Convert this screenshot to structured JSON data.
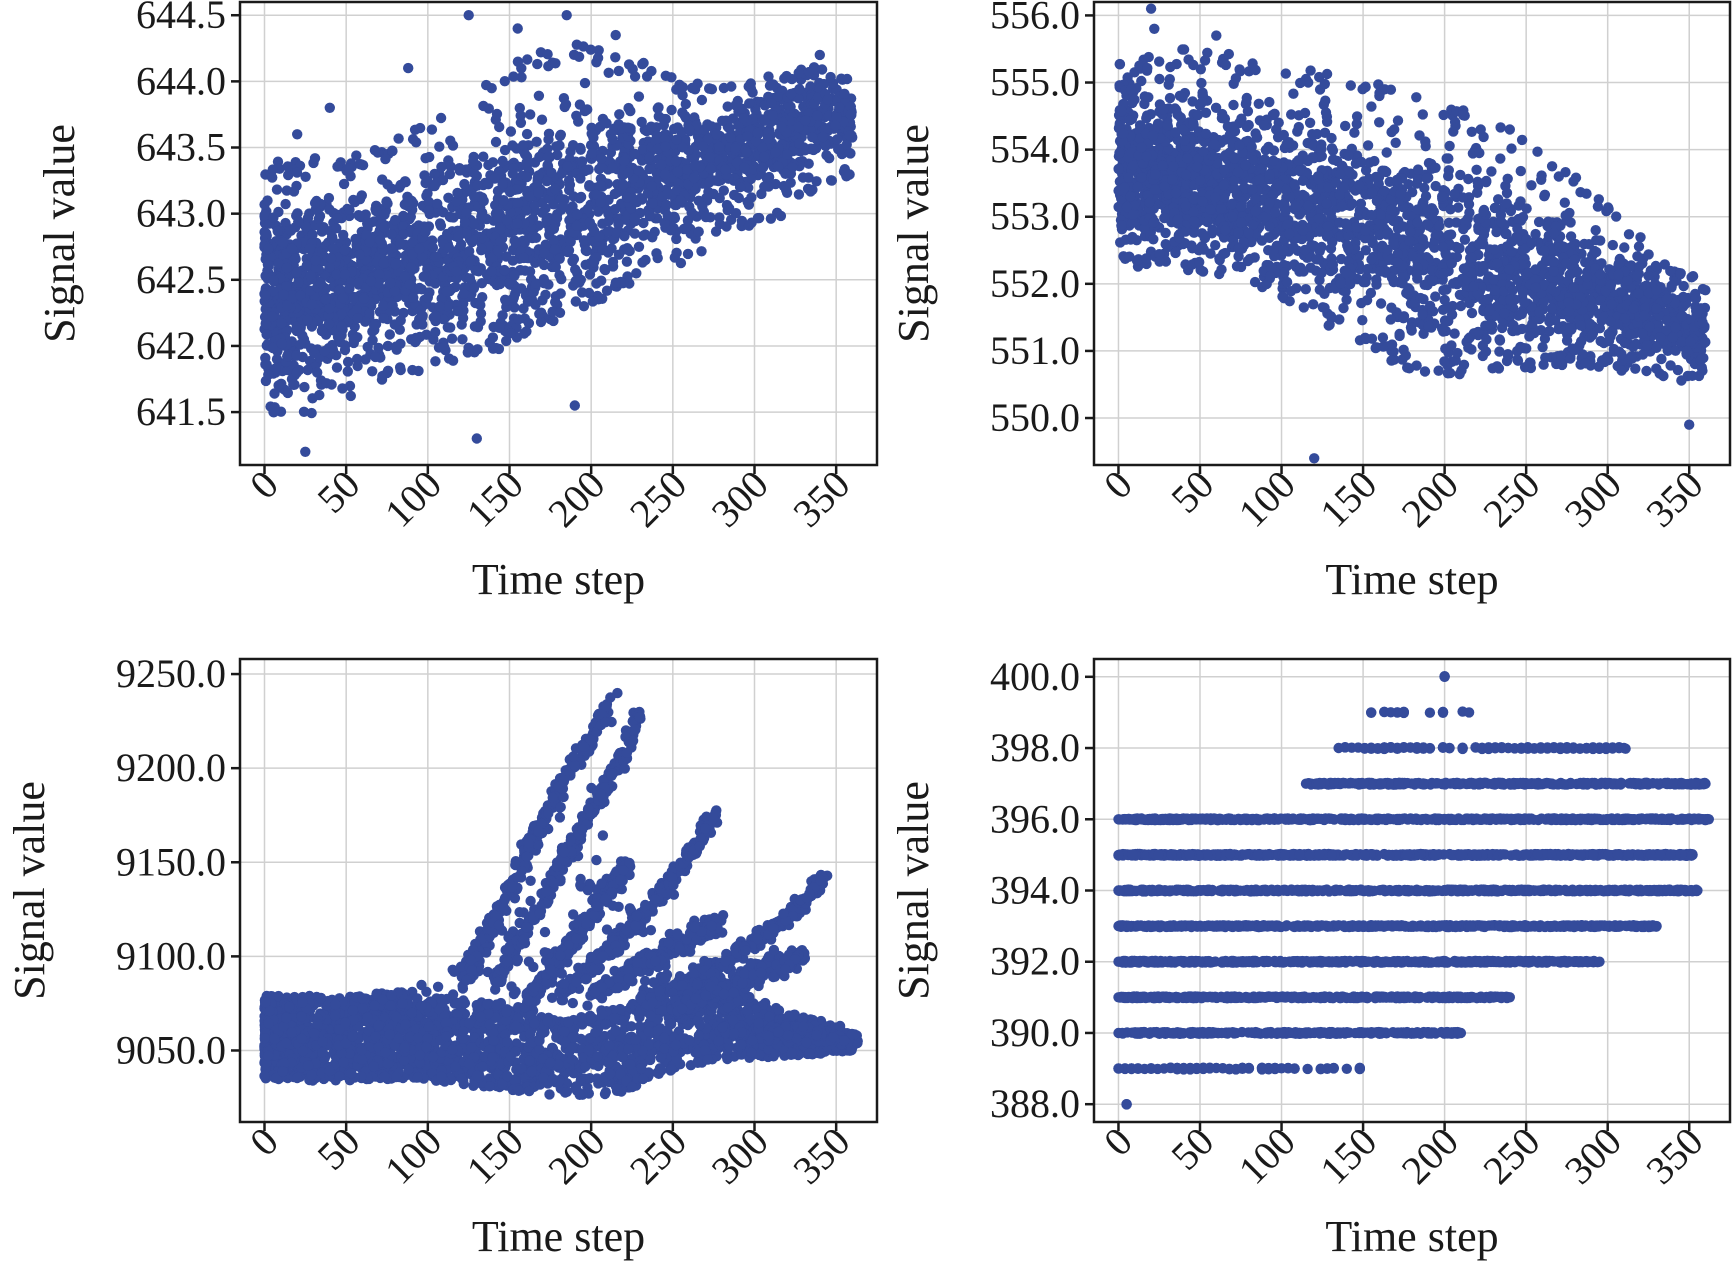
{
  "chart_data": [
    {
      "type": "scatter",
      "title": "",
      "xlabel": "Time step",
      "ylabel": "Signal value",
      "xlim": [
        -15,
        375
      ],
      "ylim": [
        641.1,
        644.6
      ],
      "xticks": [
        0,
        50,
        100,
        150,
        200,
        250,
        300,
        350
      ],
      "xtick_labels": [
        "0",
        "50",
        "100",
        "150",
        "200",
        "250",
        "300",
        "350"
      ],
      "yticks": [
        641.5,
        642.0,
        642.5,
        643.0,
        643.5,
        644.0,
        644.5
      ],
      "ytick_labels": [
        "641.5",
        "642.0",
        "642.5",
        "643.0",
        "643.5",
        "644.0",
        "644.5"
      ],
      "grid": true,
      "color": "#344b9b",
      "x": [
        0,
        20,
        40,
        60,
        80,
        100,
        120,
        140,
        160,
        180,
        200,
        220,
        240,
        260,
        280,
        300,
        320,
        340,
        360
      ],
      "y_mean": [
        642.4,
        642.45,
        642.5,
        642.55,
        642.6,
        642.65,
        642.75,
        642.85,
        642.95,
        643.05,
        643.15,
        643.2,
        643.3,
        643.35,
        643.4,
        643.5,
        643.6,
        643.7,
        643.75
      ],
      "y_lower": [
        641.4,
        641.45,
        641.5,
        641.6,
        641.7,
        641.8,
        641.9,
        641.95,
        642.1,
        642.2,
        642.3,
        642.45,
        642.55,
        642.65,
        642.8,
        642.9,
        643.0,
        643.2,
        643.3
      ],
      "y_upper": [
        643.4,
        643.45,
        643.4,
        643.45,
        643.6,
        643.7,
        643.9,
        644.1,
        644.2,
        644.3,
        644.3,
        644.2,
        644.1,
        644.0,
        643.95,
        644.0,
        644.1,
        644.15,
        644.0
      ],
      "outliers": [
        [
          125,
          644.5
        ],
        [
          185,
          644.5
        ],
        [
          155,
          644.4
        ],
        [
          215,
          644.35
        ],
        [
          88,
          644.1
        ],
        [
          40,
          643.8
        ],
        [
          20,
          643.6
        ],
        [
          340,
          644.2
        ],
        [
          240,
          642.7
        ],
        [
          130,
          641.3
        ],
        [
          190,
          641.55
        ],
        [
          25,
          641.2
        ]
      ]
    },
    {
      "type": "scatter",
      "title": "",
      "xlabel": "Time step",
      "ylabel": "Signal value",
      "xlim": [
        -15,
        375
      ],
      "ylim": [
        549.3,
        556.2
      ],
      "xticks": [
        0,
        50,
        100,
        150,
        200,
        250,
        300,
        350
      ],
      "xtick_labels": [
        "0",
        "50",
        "100",
        "150",
        "200",
        "250",
        "300",
        "350"
      ],
      "yticks": [
        550.0,
        551.0,
        552.0,
        553.0,
        554.0,
        555.0,
        556.0
      ],
      "ytick_labels": [
        "550.0",
        "551.0",
        "552.0",
        "553.0",
        "554.0",
        "555.0",
        "556.0"
      ],
      "grid": true,
      "color": "#344b9b",
      "x": [
        0,
        20,
        40,
        60,
        80,
        100,
        120,
        140,
        160,
        180,
        200,
        220,
        240,
        260,
        280,
        300,
        320,
        340,
        360
      ],
      "y_mean": [
        553.7,
        553.65,
        553.6,
        553.5,
        553.4,
        553.25,
        553.1,
        552.95,
        552.8,
        552.6,
        552.4,
        552.3,
        552.15,
        552.0,
        551.9,
        551.7,
        551.55,
        551.4,
        551.3
      ],
      "y_lower": [
        552.3,
        552.2,
        552.2,
        552.1,
        552.0,
        551.8,
        551.5,
        551.2,
        550.9,
        550.7,
        550.6,
        550.7,
        550.7,
        550.75,
        550.8,
        550.7,
        550.6,
        550.5,
        550.6
      ],
      "y_upper": [
        555.3,
        555.4,
        555.5,
        555.5,
        555.4,
        555.3,
        555.2,
        555.1,
        555.0,
        554.9,
        554.7,
        554.5,
        554.3,
        554.0,
        553.6,
        553.2,
        552.7,
        552.3,
        552.0
      ],
      "outliers": [
        [
          20,
          556.1
        ],
        [
          22,
          555.8
        ],
        [
          60,
          555.7
        ],
        [
          160,
          554.8
        ],
        [
          120,
          549.4
        ],
        [
          240,
          554.3
        ],
        [
          350,
          549.9
        ],
        [
          330,
          551.9
        ],
        [
          270,
          553.6
        ]
      ]
    },
    {
      "type": "scatter",
      "title": "",
      "xlabel": "Time step",
      "ylabel": "Signal value",
      "xlim": [
        -15,
        375
      ],
      "ylim": [
        9012,
        9258
      ],
      "xticks": [
        0,
        50,
        100,
        150,
        200,
        250,
        300,
        350
      ],
      "xtick_labels": [
        "0",
        "50",
        "100",
        "150",
        "200",
        "250",
        "300",
        "350"
      ],
      "yticks": [
        9050.0,
        9100.0,
        9150.0,
        9200.0,
        9250.0
      ],
      "ytick_labels": [
        "9050.0",
        "9100.0",
        "9150.0",
        "9200.0",
        "9250.0"
      ],
      "grid": true,
      "color": "#344b9b",
      "band": {
        "x": [
          0,
          20,
          40,
          60,
          80,
          100,
          120,
          140,
          160,
          180,
          200,
          220,
          240,
          260,
          280,
          300,
          320,
          340,
          360
        ],
        "y_lower": [
          9035,
          9034,
          9034,
          9034,
          9035,
          9034,
          9032,
          9030,
          9028,
          9026,
          9026,
          9028,
          9036,
          9042,
          9045,
          9046,
          9047,
          9048,
          9050
        ],
        "y_upper": [
          9079,
          9079,
          9079,
          9079,
          9082,
          9086,
          9100,
          9118,
          9150,
          9180,
          9200,
          9140,
          9112,
          9098,
          9090,
          9078,
          9070,
          9066,
          9058
        ]
      },
      "branches": [
        {
          "x": [
            120,
            150,
            175,
            195,
            210,
            213
          ],
          "y": [
            9085,
            9135,
            9180,
            9210,
            9232,
            9244
          ]
        },
        {
          "x": [
            140,
            170,
            195,
            215,
            230
          ],
          "y": [
            9085,
            9128,
            9170,
            9200,
            9228
          ]
        },
        {
          "x": [
            160,
            190,
            210,
            225
          ],
          "y": [
            9075,
            9110,
            9135,
            9152
          ]
        },
        {
          "x": [
            180,
            215,
            245,
            265,
            277
          ],
          "y": [
            9080,
            9105,
            9135,
            9160,
            9176
          ]
        },
        {
          "x": [
            200,
            240,
            265,
            280
          ],
          "y": [
            9080,
            9100,
            9112,
            9118
          ]
        },
        {
          "x": [
            230,
            270,
            305,
            330,
            342
          ],
          "y": [
            9075,
            9090,
            9110,
            9128,
            9142
          ]
        },
        {
          "x": [
            250,
            290,
            310,
            330
          ],
          "y": [
            9072,
            9085,
            9095,
            9100
          ]
        },
        {
          "x": [
            280,
            320,
            350,
            362
          ],
          "y": [
            9062,
            9060,
            9058,
            9055
          ]
        }
      ]
    },
    {
      "type": "scatter",
      "title": "",
      "xlabel": "Time step",
      "ylabel": "Signal value",
      "xlim": [
        -15,
        375
      ],
      "ylim": [
        387.5,
        400.5
      ],
      "xticks": [
        0,
        50,
        100,
        150,
        200,
        250,
        300,
        350
      ],
      "xtick_labels": [
        "0",
        "50",
        "100",
        "150",
        "200",
        "250",
        "300",
        "350"
      ],
      "yticks": [
        388.0,
        390.0,
        392.0,
        394.0,
        396.0,
        398.0,
        400.0
      ],
      "ytick_labels": [
        "388.0",
        "390.0",
        "392.0",
        "394.0",
        "396.0",
        "398.0",
        "400.0"
      ],
      "grid": true,
      "color": "#344b9b",
      "levels": [
        {
          "y": 400,
          "xmin": 200,
          "xmax": 200,
          "density": 0.1
        },
        {
          "y": 399,
          "xmin": 155,
          "xmax": 215,
          "density": 0.15
        },
        {
          "y": 398,
          "xmin": 135,
          "xmax": 310,
          "density": 0.5
        },
        {
          "y": 397,
          "xmin": 115,
          "xmax": 360,
          "density": 0.9
        },
        {
          "y": 396,
          "xmin": 0,
          "xmax": 362,
          "density": 0.95
        },
        {
          "y": 395,
          "xmin": 0,
          "xmax": 352,
          "density": 1.0
        },
        {
          "y": 394,
          "xmin": 0,
          "xmax": 355,
          "density": 1.0
        },
        {
          "y": 393,
          "xmin": 0,
          "xmax": 330,
          "density": 1.0
        },
        {
          "y": 392,
          "xmin": 0,
          "xmax": 295,
          "density": 1.0
        },
        {
          "y": 391,
          "xmin": 0,
          "xmax": 240,
          "density": 0.95
        },
        {
          "y": 390,
          "xmin": 0,
          "xmax": 210,
          "density": 0.8
        },
        {
          "y": 389,
          "xmin": 0,
          "xmax": 148,
          "density": 0.35
        },
        {
          "y": 388,
          "xmin": 5,
          "xmax": 5,
          "density": 0.1
        }
      ]
    }
  ]
}
